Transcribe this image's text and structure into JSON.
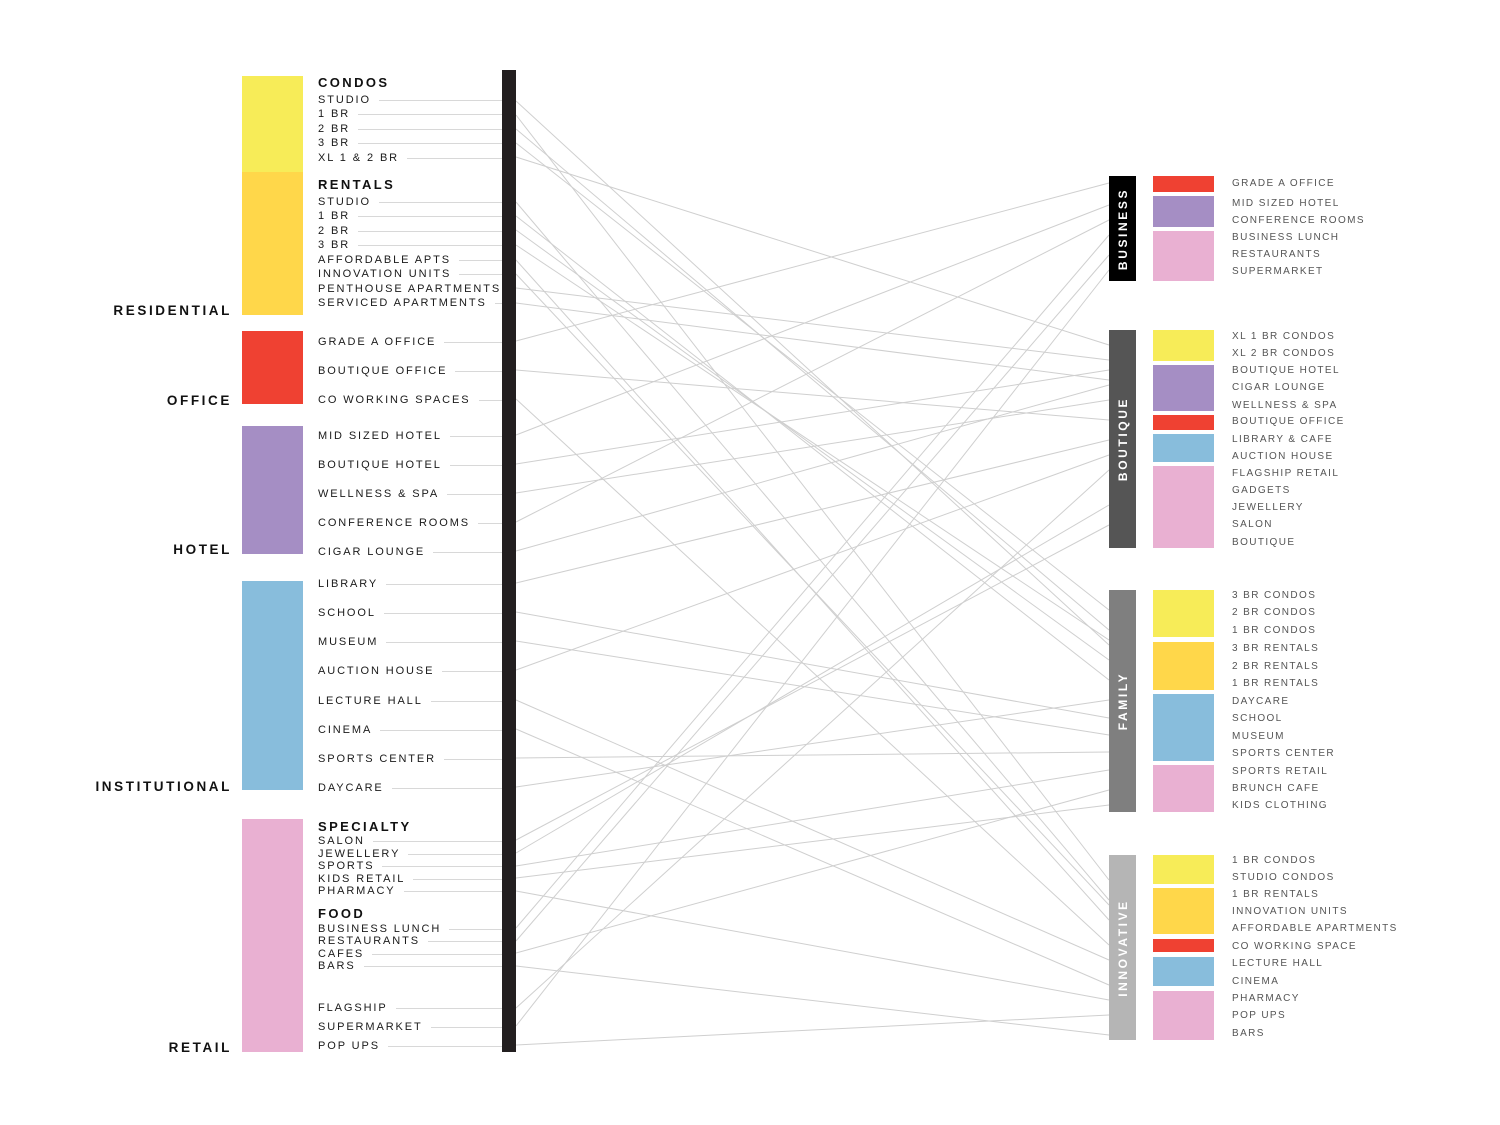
{
  "left": {
    "categories": [
      {
        "name": "RESIDENTIAL",
        "color": "#f7ec58",
        "color2": "#ffd74a"
      },
      {
        "name": "OFFICE",
        "color": "#ef4132"
      },
      {
        "name": "HOTEL",
        "color": "#a58ec4"
      },
      {
        "name": "INSTITUTIONAL",
        "color": "#88bddc"
      },
      {
        "name": "RETAIL",
        "color": "#e9b0d2"
      }
    ],
    "subheadings": [
      "CONDOS",
      "RENTALS",
      "SPECIALTY",
      "FOOD"
    ],
    "items": [
      "STUDIO",
      "1 BR",
      "2 BR",
      "3 BR",
      "XL 1 & 2 BR",
      "STUDIO",
      "1 BR",
      "2 BR",
      "3 BR",
      "AFFORDABLE APTS",
      "INNOVATION UNITS",
      "PENTHOUSE APARTMENTS",
      "SERVICED APARTMENTS",
      "GRADE A OFFICE",
      "BOUTIQUE OFFICE",
      "CO WORKING SPACES",
      "MID SIZED HOTEL",
      "BOUTIQUE HOTEL",
      "WELLNESS & SPA",
      "CONFERENCE ROOMS",
      "CIGAR LOUNGE",
      "LIBRARY",
      "SCHOOL",
      "MUSEUM",
      "AUCTION HOUSE",
      "LECTURE HALL",
      "CINEMA",
      "SPORTS CENTER",
      "DAYCARE",
      "SALON",
      "JEWELLERY",
      "SPORTS",
      "KIDS RETAIL",
      "PHARMACY",
      "BUSINESS LUNCH",
      "RESTAURANTS",
      "CAFES",
      "BARS",
      "FLAGSHIP",
      "SUPERMARKET",
      "POP UPS"
    ]
  },
  "right": {
    "groups": [
      {
        "name": "BUSINESS",
        "color": "#000000",
        "items": [
          "GRADE A OFFICE",
          "MID SIZED HOTEL",
          "CONFERENCE ROOMS",
          "BUSINESS LUNCH",
          "RESTAURANTS",
          "SUPERMARKET"
        ]
      },
      {
        "name": "BOUTIQUE",
        "color": "#555555",
        "items": [
          "XL 1 BR CONDOS",
          "XL 2 BR CONDOS",
          "BOUTIQUE HOTEL",
          "CIGAR LOUNGE",
          "WELLNESS & SPA",
          "BOUTIQUE OFFICE",
          "LIBRARY & CAFE",
          "AUCTION HOUSE",
          "FLAGSHIP RETAIL",
          "GADGETS",
          "JEWELLERY",
          "SALON",
          "BOUTIQUE"
        ]
      },
      {
        "name": "FAMILY",
        "color": "#7f7f7f",
        "items": [
          "3 BR CONDOS",
          "2 BR CONDOS",
          "1 BR CONDOS",
          "3 BR RENTALS",
          "2 BR RENTALS",
          "1 BR RENTALS",
          "DAYCARE",
          "SCHOOL",
          "MUSEUM",
          "SPORTS CENTER",
          "SPORTS RETAIL",
          "BRUNCH CAFE",
          "KIDS CLOTHING"
        ]
      },
      {
        "name": "INNOVATIVE",
        "color": "#b5b5b5",
        "items": [
          "1 BR CONDOS",
          "STUDIO CONDOS",
          "1 BR RENTALS",
          "INNOVATION UNITS",
          "AFFORDABLE APARTMENTS",
          "CO WORKING SPACE",
          "LECTURE HALL",
          "CINEMA",
          "PHARMACY",
          "POP UPS",
          "BARS"
        ]
      }
    ]
  },
  "colors": {
    "yellow": "#f7ec58",
    "orange": "#ffd74a",
    "red": "#ef4132",
    "purple": "#a58ec4",
    "blue": "#88bddc",
    "pink": "#e9b0d2",
    "bar": "#231f20",
    "connector": "#cfcfcf"
  }
}
